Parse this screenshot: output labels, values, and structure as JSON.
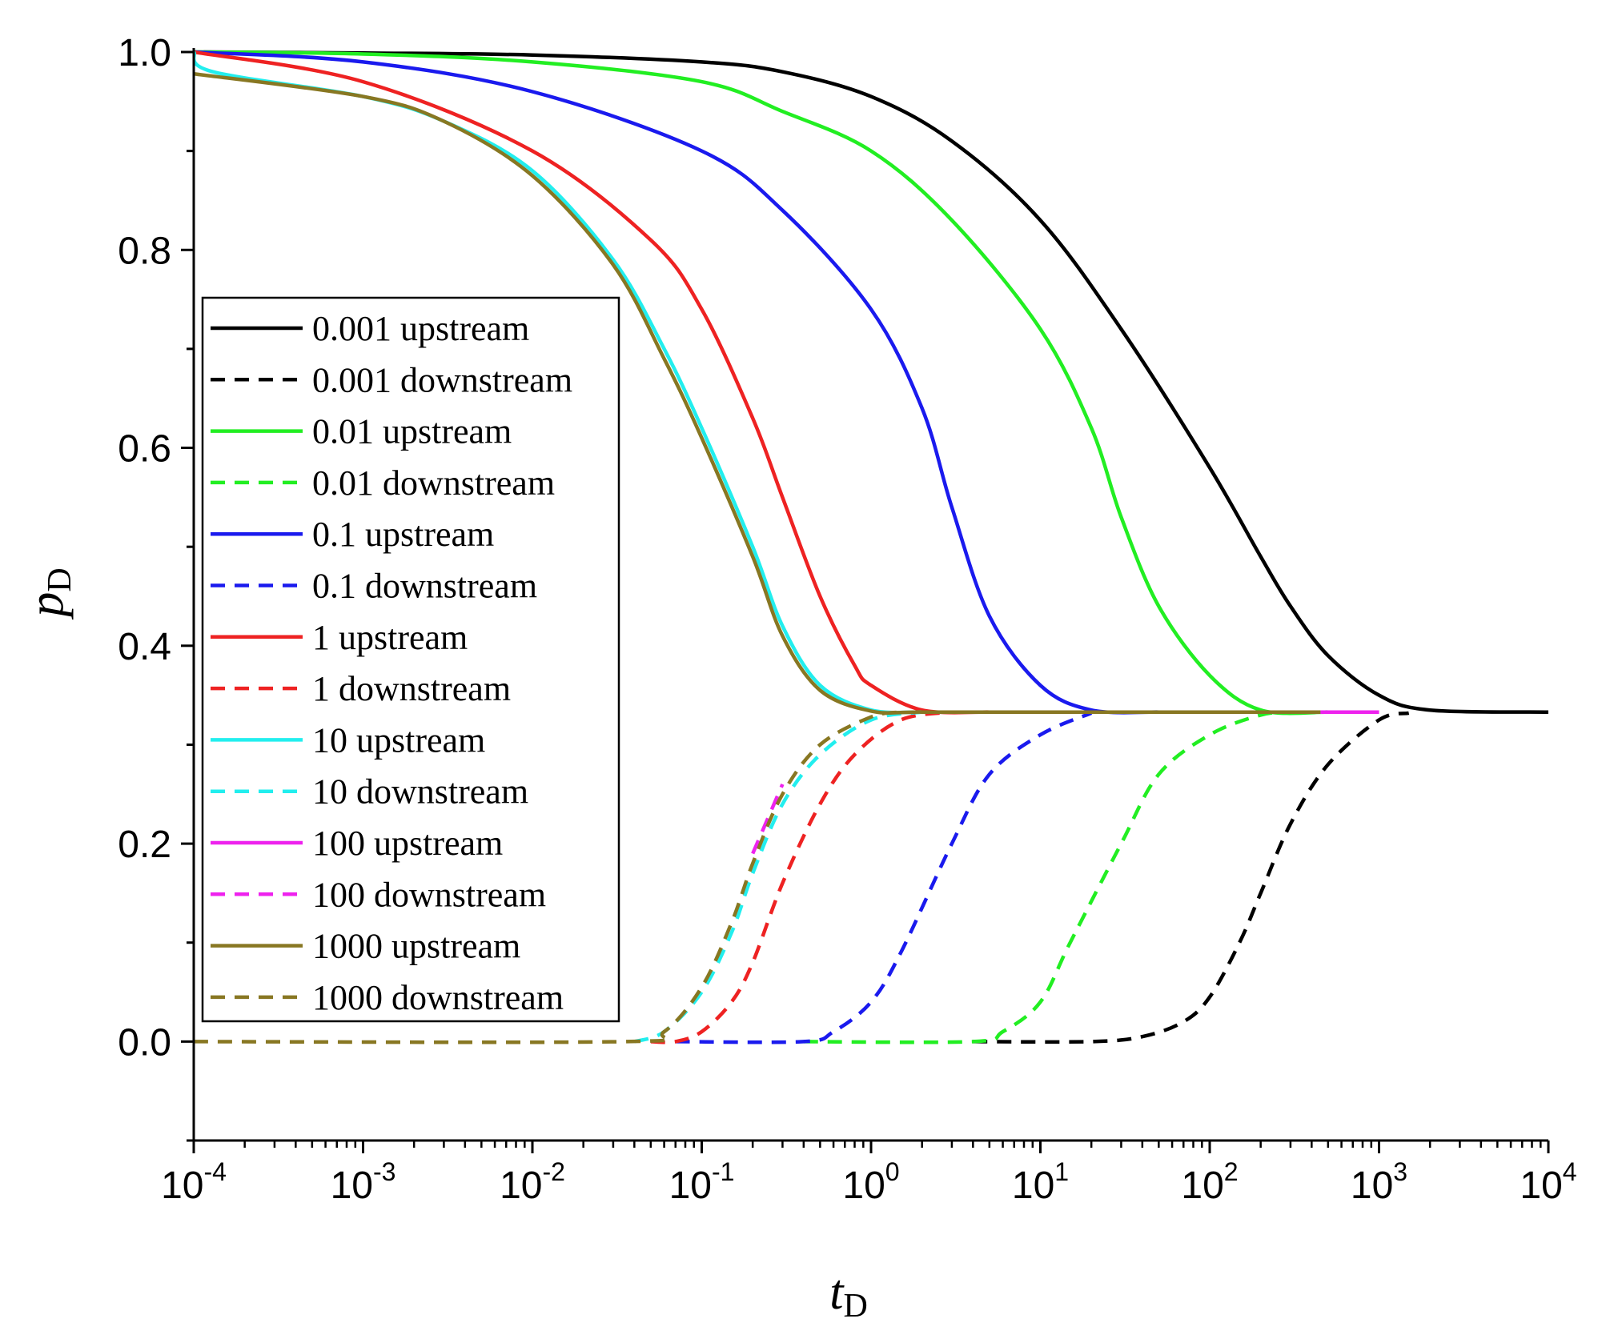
{
  "chart_data": {
    "type": "line",
    "title": "",
    "xlabel": {
      "main": "t",
      "sub": "D"
    },
    "ylabel": {
      "main": "p",
      "sub": "D"
    },
    "xscale": "log",
    "xlim": [
      0.0001,
      10000
    ],
    "ylim": [
      -0.1,
      1.0
    ],
    "x_ticks": [
      {
        "value": 0.0001,
        "base": "10",
        "exp": "-4"
      },
      {
        "value": 0.001,
        "base": "10",
        "exp": "-3"
      },
      {
        "value": 0.01,
        "base": "10",
        "exp": "-2"
      },
      {
        "value": 0.1,
        "base": "10",
        "exp": "-1"
      },
      {
        "value": 1,
        "base": "10",
        "exp": "0"
      },
      {
        "value": 10,
        "base": "10",
        "exp": "1"
      },
      {
        "value": 100,
        "base": "10",
        "exp": "2"
      },
      {
        "value": 1000,
        "base": "10",
        "exp": "3"
      },
      {
        "value": 10000,
        "base": "10",
        "exp": "4"
      }
    ],
    "y_ticks": [
      {
        "value": 0.0,
        "label": "0.0"
      },
      {
        "value": 0.2,
        "label": "0.2"
      },
      {
        "value": 0.4,
        "label": "0.4"
      },
      {
        "value": 0.6,
        "label": "0.6"
      },
      {
        "value": 0.8,
        "label": "0.8"
      },
      {
        "value": 1.0,
        "label": "1.0"
      }
    ],
    "legend_position": "center-left",
    "grid": false,
    "series": [
      {
        "name": "0.001 upstream",
        "color": "#000000",
        "dash": false,
        "points": [
          [
            0.0001,
            1.0
          ],
          [
            0.001,
            0.999
          ],
          [
            0.01,
            0.997
          ],
          [
            0.1,
            0.99
          ],
          [
            0.3,
            0.98
          ],
          [
            1,
            0.955
          ],
          [
            3,
            0.91
          ],
          [
            10,
            0.83
          ],
          [
            30,
            0.72
          ],
          [
            100,
            0.58
          ],
          [
            200,
            0.49
          ],
          [
            300,
            0.44
          ],
          [
            500,
            0.39
          ],
          [
            1000,
            0.35
          ],
          [
            2000,
            0.335
          ],
          [
            10000,
            0.333
          ]
        ]
      },
      {
        "name": "0.001 downstream",
        "color": "#000000",
        "dash": true,
        "points": [
          [
            4,
            0.0
          ],
          [
            20,
            0.0
          ],
          [
            40,
            0.005
          ],
          [
            70,
            0.02
          ],
          [
            100,
            0.045
          ],
          [
            150,
            0.1
          ],
          [
            200,
            0.15
          ],
          [
            300,
            0.22
          ],
          [
            500,
            0.28
          ],
          [
            1000,
            0.325
          ],
          [
            1500,
            0.332
          ]
        ]
      },
      {
        "name": "0.01 upstream",
        "color": "#22ee22",
        "dash": false,
        "points": [
          [
            0.0001,
            1.0
          ],
          [
            0.001,
            0.998
          ],
          [
            0.01,
            0.99
          ],
          [
            0.1,
            0.97
          ],
          [
            0.3,
            0.94
          ],
          [
            1,
            0.9
          ],
          [
            3,
            0.83
          ],
          [
            10,
            0.72
          ],
          [
            20,
            0.62
          ],
          [
            30,
            0.53
          ],
          [
            50,
            0.44
          ],
          [
            100,
            0.37
          ],
          [
            200,
            0.335
          ],
          [
            500,
            0.333
          ]
        ]
      },
      {
        "name": "0.01 downstream",
        "color": "#22ee22",
        "dash": true,
        "points": [
          [
            0.4,
            0.0
          ],
          [
            4,
            0.0
          ],
          [
            6,
            0.01
          ],
          [
            10,
            0.04
          ],
          [
            15,
            0.1
          ],
          [
            30,
            0.2
          ],
          [
            50,
            0.27
          ],
          [
            100,
            0.31
          ],
          [
            200,
            0.33
          ],
          [
            300,
            0.333
          ]
        ]
      },
      {
        "name": "0.1 upstream",
        "color": "#1a1aee",
        "dash": false,
        "points": [
          [
            0.0001,
            1.0
          ],
          [
            0.001,
            0.99
          ],
          [
            0.01,
            0.96
          ],
          [
            0.1,
            0.9
          ],
          [
            0.3,
            0.84
          ],
          [
            1,
            0.74
          ],
          [
            2,
            0.64
          ],
          [
            3,
            0.54
          ],
          [
            5,
            0.43
          ],
          [
            10,
            0.36
          ],
          [
            20,
            0.335
          ],
          [
            50,
            0.333
          ]
        ]
      },
      {
        "name": "0.1 downstream",
        "color": "#1a1aee",
        "dash": true,
        "points": [
          [
            0.07,
            0.0
          ],
          [
            0.4,
            0.0
          ],
          [
            0.6,
            0.01
          ],
          [
            1,
            0.04
          ],
          [
            1.5,
            0.09
          ],
          [
            3,
            0.2
          ],
          [
            5,
            0.27
          ],
          [
            10,
            0.31
          ],
          [
            20,
            0.332
          ]
        ]
      },
      {
        "name": "1 upstream",
        "color": "#ee2222",
        "dash": false,
        "points": [
          [
            0.0001,
            1.0
          ],
          [
            0.001,
            0.97
          ],
          [
            0.01,
            0.9
          ],
          [
            0.05,
            0.81
          ],
          [
            0.1,
            0.74
          ],
          [
            0.2,
            0.63
          ],
          [
            0.3,
            0.55
          ],
          [
            0.5,
            0.45
          ],
          [
            0.8,
            0.38
          ],
          [
            1,
            0.36
          ],
          [
            2,
            0.335
          ],
          [
            5,
            0.333
          ]
        ]
      },
      {
        "name": "1 downstream",
        "color": "#ee2222",
        "dash": true,
        "points": [
          [
            0.05,
            0.0
          ],
          [
            0.07,
            0.0
          ],
          [
            0.1,
            0.01
          ],
          [
            0.15,
            0.04
          ],
          [
            0.2,
            0.08
          ],
          [
            0.3,
            0.16
          ],
          [
            0.5,
            0.24
          ],
          [
            0.8,
            0.29
          ],
          [
            1.5,
            0.325
          ],
          [
            3,
            0.333
          ]
        ]
      },
      {
        "name": "10 upstream",
        "color": "#22eeee",
        "dash": false,
        "points": [
          [
            0.0001,
            1.0
          ],
          [
            0.00013,
            0.98
          ],
          [
            0.001,
            0.955
          ],
          [
            0.003,
            0.93
          ],
          [
            0.01,
            0.88
          ],
          [
            0.03,
            0.79
          ],
          [
            0.06,
            0.7
          ],
          [
            0.1,
            0.62
          ],
          [
            0.2,
            0.5
          ],
          [
            0.3,
            0.42
          ],
          [
            0.5,
            0.36
          ],
          [
            1,
            0.335
          ],
          [
            2,
            0.333
          ]
        ]
      },
      {
        "name": "10 downstream",
        "color": "#22eeee",
        "dash": true,
        "points": [
          [
            0.04,
            0.0
          ],
          [
            0.06,
            0.01
          ],
          [
            0.1,
            0.05
          ],
          [
            0.15,
            0.11
          ],
          [
            0.2,
            0.17
          ],
          [
            0.3,
            0.24
          ],
          [
            0.5,
            0.29
          ],
          [
            1,
            0.325
          ],
          [
            2,
            0.333
          ]
        ]
      },
      {
        "name": "100 upstream",
        "color": "#ee22ee",
        "dash": false,
        "points": [
          [
            450,
            0.333
          ],
          [
            1000,
            0.333
          ]
        ]
      },
      {
        "name": "100 downstream",
        "color": "#ee22ee",
        "dash": true,
        "points": [
          [
            0.2,
            0.19
          ],
          [
            0.3,
            0.26
          ]
        ]
      },
      {
        "name": "1000 upstream",
        "color": "#887722",
        "dash": false,
        "points": [
          [
            0.0001,
            0.978
          ],
          [
            0.001,
            0.955
          ],
          [
            0.003,
            0.93
          ],
          [
            0.01,
            0.875
          ],
          [
            0.03,
            0.785
          ],
          [
            0.06,
            0.69
          ],
          [
            0.1,
            0.61
          ],
          [
            0.2,
            0.49
          ],
          [
            0.3,
            0.41
          ],
          [
            0.5,
            0.355
          ],
          [
            1,
            0.334
          ],
          [
            2,
            0.333
          ],
          [
            10,
            0.333
          ],
          [
            100,
            0.333
          ],
          [
            450,
            0.333
          ]
        ]
      },
      {
        "name": "1000 downstream",
        "color": "#887722",
        "dash": true,
        "points": [
          [
            0.0001,
            0.0
          ],
          [
            0.035,
            0.0
          ],
          [
            0.06,
            0.01
          ],
          [
            0.1,
            0.055
          ],
          [
            0.15,
            0.12
          ],
          [
            0.2,
            0.18
          ],
          [
            0.3,
            0.25
          ],
          [
            0.5,
            0.3
          ],
          [
            1,
            0.328
          ],
          [
            1.5,
            0.333
          ]
        ]
      }
    ]
  }
}
